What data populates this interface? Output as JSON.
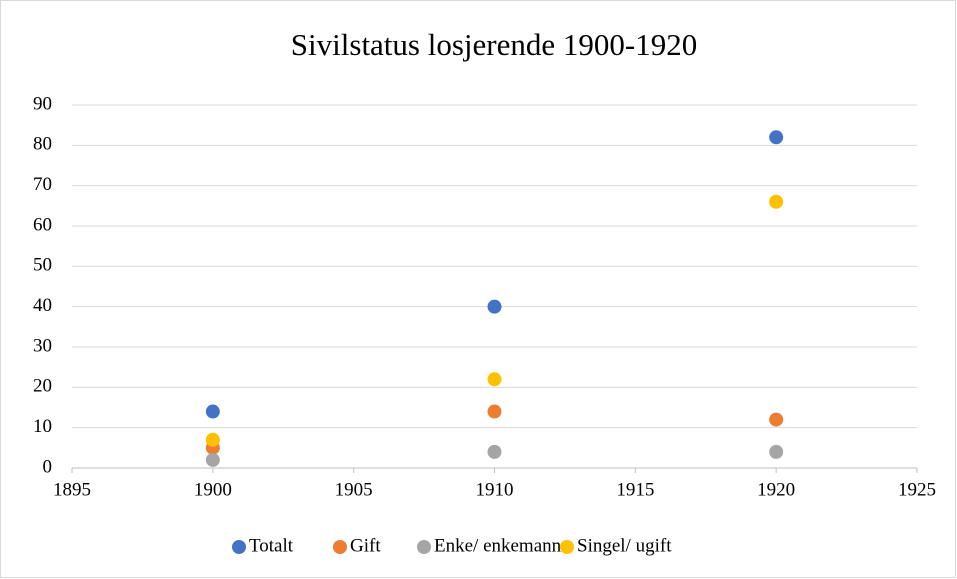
{
  "chart_data": {
    "type": "scatter",
    "title": "Sivilstatus losjerende 1900-1920",
    "series": [
      {
        "name": "Totalt",
        "color": "#4472c4",
        "x": [
          1900,
          1910,
          1920
        ],
        "values": [
          14,
          40,
          82
        ]
      },
      {
        "name": "Gift",
        "color": "#ed7d31",
        "x": [
          1900,
          1910,
          1920
        ],
        "values": [
          5,
          14,
          12
        ]
      },
      {
        "name": "Enke/ enkemann",
        "color": "#a5a5a5",
        "x": [
          1900,
          1910,
          1920
        ],
        "values": [
          2,
          4,
          4
        ]
      },
      {
        "name": "Singel/ ugift",
        "color": "#ffc000",
        "x": [
          1900,
          1910,
          1920
        ],
        "values": [
          7,
          22,
          66
        ]
      }
    ],
    "xlim": [
      1895,
      1925
    ],
    "xticks": [
      1895,
      1900,
      1905,
      1910,
      1915,
      1920,
      1925
    ],
    "ylim": [
      0,
      90
    ],
    "yticks": [
      0,
      10,
      20,
      30,
      40,
      50,
      60,
      70,
      80,
      90
    ],
    "grid": true,
    "legend": "bottom"
  }
}
